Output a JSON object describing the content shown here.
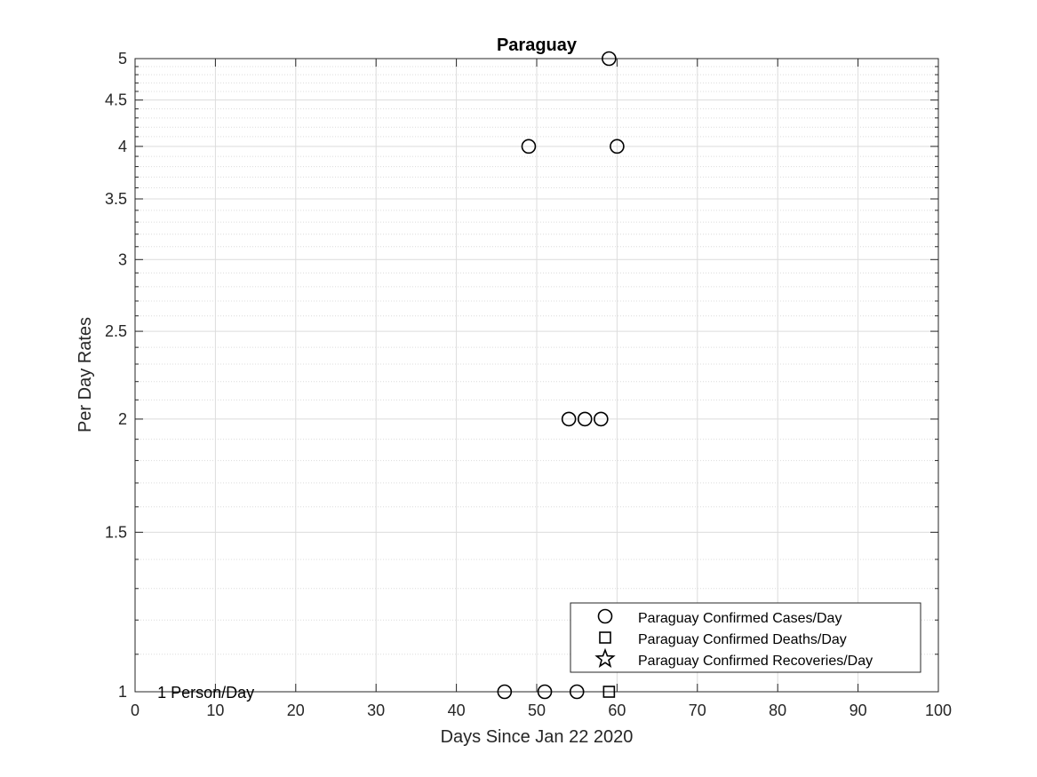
{
  "chart_data": {
    "type": "scatter",
    "title": "Paraguay",
    "xlabel": "Days Since Jan 22 2020",
    "ylabel": "Per Day Rates",
    "xlim": [
      0,
      100
    ],
    "ylim": [
      1,
      5
    ],
    "yscale": "log",
    "grid": true,
    "minor_grid": true,
    "xticks": [
      0,
      10,
      20,
      30,
      40,
      50,
      60,
      70,
      80,
      90,
      100
    ],
    "yticks": [
      1,
      1.5,
      2,
      2.5,
      3,
      3.5,
      4,
      4.5,
      5
    ],
    "legend_position": "bottom-right",
    "series": [
      {
        "name": "Paraguay Confirmed Cases/Day",
        "marker": "circle",
        "x": [
          46,
          49,
          51,
          54,
          55,
          56,
          58,
          59,
          60
        ],
        "y": [
          1,
          4,
          1,
          2,
          1,
          2,
          2,
          5,
          4
        ]
      },
      {
        "name": "Paraguay Confirmed Deaths/Day",
        "marker": "square",
        "x": [
          59
        ],
        "y": [
          1
        ]
      },
      {
        "name": "Paraguay Confirmed Recoveries/Day",
        "marker": "star",
        "x": [],
        "y": []
      }
    ],
    "annotations": [
      {
        "text": "1 Person/Day",
        "x": 3,
        "y": 1
      }
    ]
  },
  "colors": {
    "marker_edge": "#000000",
    "grid": "#dcdcdc",
    "axis": "#262626"
  }
}
